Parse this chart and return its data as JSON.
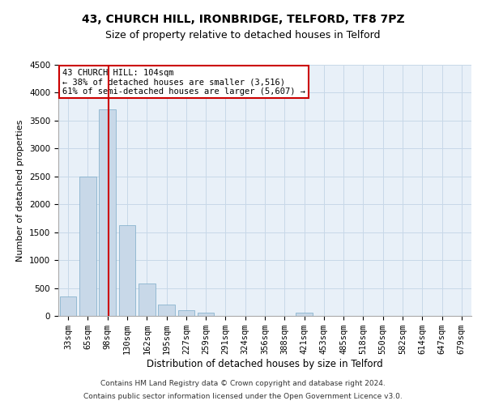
{
  "title1": "43, CHURCH HILL, IRONBRIDGE, TELFORD, TF8 7PZ",
  "title2": "Size of property relative to detached houses in Telford",
  "xlabel": "Distribution of detached houses by size in Telford",
  "ylabel": "Number of detached properties",
  "footer1": "Contains HM Land Registry data © Crown copyright and database right 2024.",
  "footer2": "Contains public sector information licensed under the Open Government Licence v3.0.",
  "categories": [
    "33sqm",
    "65sqm",
    "98sqm",
    "130sqm",
    "162sqm",
    "195sqm",
    "227sqm",
    "259sqm",
    "291sqm",
    "324sqm",
    "356sqm",
    "388sqm",
    "421sqm",
    "453sqm",
    "485sqm",
    "518sqm",
    "550sqm",
    "582sqm",
    "614sqm",
    "647sqm",
    "679sqm"
  ],
  "values": [
    350,
    2500,
    3700,
    1625,
    575,
    210,
    100,
    55,
    0,
    0,
    0,
    0,
    55,
    0,
    0,
    0,
    0,
    0,
    0,
    0,
    0
  ],
  "bar_color": "#c8d8e8",
  "bar_edge_color": "#7aaac8",
  "highlight_bar_index": 2,
  "highlight_line_color": "#cc0000",
  "annotation_text1": "43 CHURCH HILL: 104sqm",
  "annotation_text2": "← 38% of detached houses are smaller (3,516)",
  "annotation_text3": "61% of semi-detached houses are larger (5,607) →",
  "annotation_box_color": "#ffffff",
  "annotation_border_color": "#cc0000",
  "ylim": [
    0,
    4500
  ],
  "yticks": [
    0,
    500,
    1000,
    1500,
    2000,
    2500,
    3000,
    3500,
    4000,
    4500
  ],
  "grid_color": "#c8d8e8",
  "bg_color": "#e8f0f8",
  "title1_fontsize": 10,
  "title2_fontsize": 9,
  "xlabel_fontsize": 8.5,
  "ylabel_fontsize": 8,
  "tick_fontsize": 7.5,
  "footer_fontsize": 6.5,
  "annotation_fontsize": 7.5
}
